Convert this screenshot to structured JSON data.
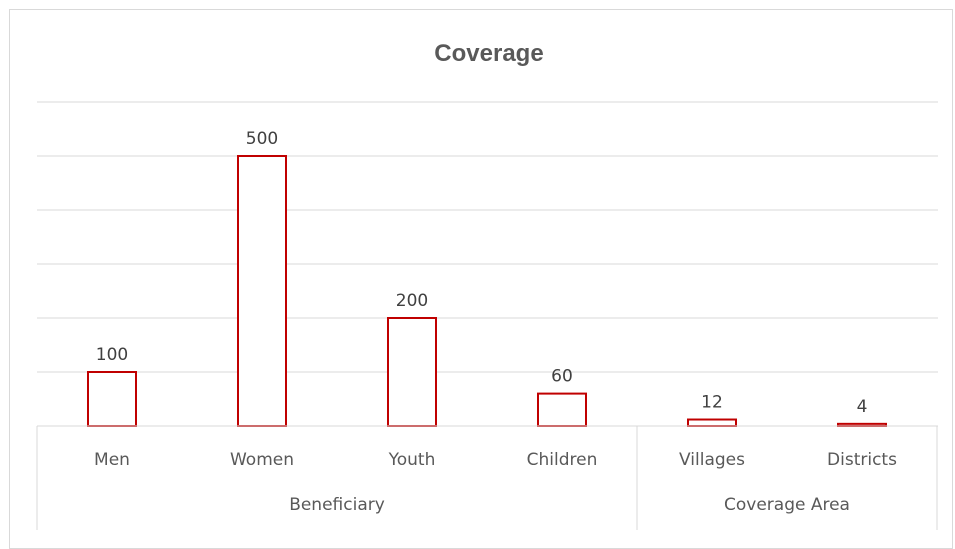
{
  "chart_data": {
    "type": "bar",
    "title": "Coverage",
    "groups": [
      {
        "name": "Beneficiary",
        "categories": [
          "Men",
          "Women",
          "Youth",
          "Children"
        ],
        "values": [
          100,
          500,
          200,
          60
        ]
      },
      {
        "name": "Coverage Area",
        "categories": [
          "Villages",
          "Districts"
        ],
        "values": [
          12,
          4
        ]
      }
    ],
    "categories": [
      "Men",
      "Women",
      "Youth",
      "Children",
      "Villages",
      "Districts"
    ],
    "values": [
      100,
      500,
      200,
      60,
      12,
      4
    ],
    "ylim": [
      0,
      600
    ],
    "grid": true,
    "legend": "none",
    "colors": {
      "bar_stroke": "#c00000",
      "bar_fill": "#ffffff",
      "grid": "#d9d9d9"
    }
  }
}
